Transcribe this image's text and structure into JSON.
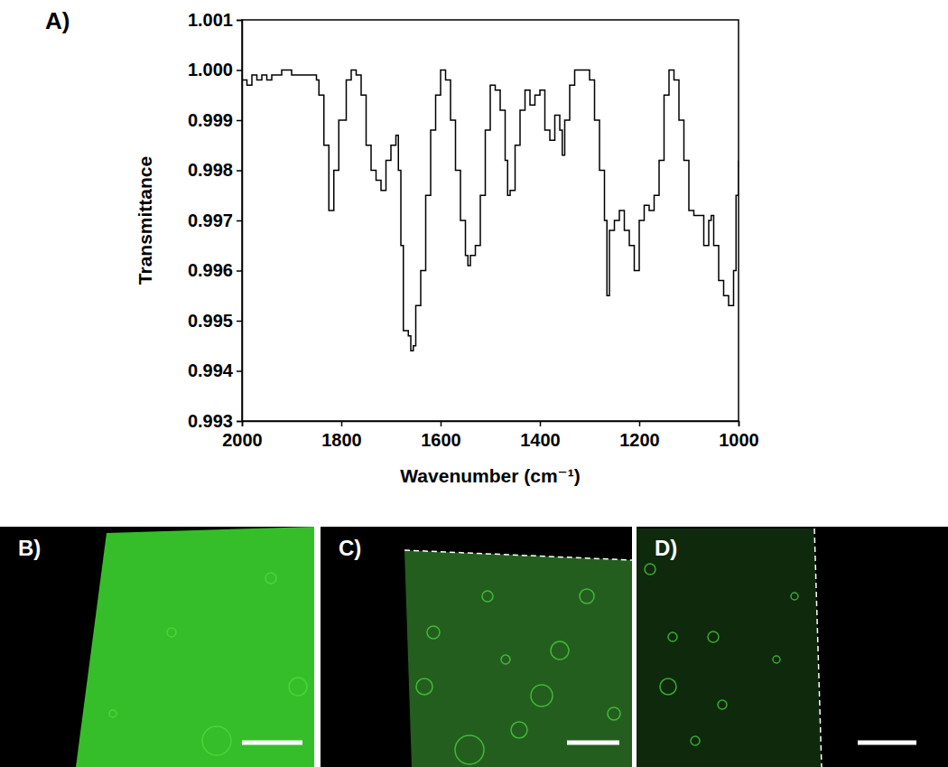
{
  "chart_data": {
    "type": "line",
    "annotations": [
      "A)"
    ],
    "x_label": "Wavenumber (cm⁻¹)",
    "y_label": "Transmittance",
    "x": [
      2000,
      1990,
      1980,
      1970,
      1960,
      1950,
      1940,
      1920,
      1900,
      1880,
      1860,
      1850,
      1845,
      1835,
      1825,
      1815,
      1805,
      1790,
      1780,
      1770,
      1760,
      1750,
      1740,
      1730,
      1720,
      1710,
      1700,
      1690,
      1685,
      1680,
      1675,
      1665,
      1660,
      1655,
      1650,
      1640,
      1630,
      1620,
      1610,
      1600,
      1590,
      1580,
      1570,
      1560,
      1550,
      1545,
      1540,
      1530,
      1520,
      1510,
      1500,
      1490,
      1480,
      1470,
      1465,
      1460,
      1450,
      1440,
      1430,
      1420,
      1410,
      1400,
      1390,
      1380,
      1370,
      1360,
      1355,
      1350,
      1340,
      1330,
      1310,
      1300,
      1290,
      1280,
      1270,
      1265,
      1260,
      1250,
      1240,
      1230,
      1220,
      1210,
      1200,
      1190,
      1180,
      1170,
      1160,
      1150,
      1140,
      1130,
      1120,
      1110,
      1100,
      1090,
      1080,
      1070,
      1060,
      1055,
      1050,
      1040,
      1030,
      1020,
      1010,
      1005,
      1000
    ],
    "values": [
      0.9998,
      0.9997,
      0.9999,
      0.9998,
      0.9999,
      0.9998,
      0.9999,
      1.0,
      0.9999,
      0.9999,
      0.9999,
      0.9998,
      0.9995,
      0.9985,
      0.9972,
      0.998,
      0.999,
      0.9998,
      1.0,
      0.9999,
      0.9995,
      0.9985,
      0.998,
      0.9978,
      0.9976,
      0.9982,
      0.9985,
      0.9987,
      0.998,
      0.9965,
      0.9948,
      0.9947,
      0.9944,
      0.9945,
      0.9953,
      0.996,
      0.9975,
      0.9988,
      0.9995,
      1.0,
      0.9998,
      0.999,
      0.998,
      0.997,
      0.9963,
      0.9961,
      0.9963,
      0.9965,
      0.9975,
      0.9988,
      0.9997,
      0.9996,
      0.9992,
      0.9982,
      0.9975,
      0.9976,
      0.9985,
      0.9992,
      0.9996,
      0.9993,
      0.9995,
      0.9996,
      0.9988,
      0.9986,
      0.9991,
      0.9988,
      0.9983,
      0.999,
      0.9997,
      1.0,
      1.0,
      0.9998,
      0.999,
      0.998,
      0.997,
      0.9955,
      0.9968,
      0.997,
      0.9972,
      0.9968,
      0.9965,
      0.996,
      0.997,
      0.9973,
      0.9972,
      0.9975,
      0.9982,
      0.9995,
      1.0,
      0.9998,
      0.999,
      0.9982,
      0.9972,
      0.9971,
      0.9971,
      0.9965,
      0.997,
      0.9971,
      0.9965,
      0.9958,
      0.9955,
      0.9953,
      0.996,
      0.9975,
      0.9982
    ],
    "color": "#000000",
    "xlim": [
      2000,
      1000
    ],
    "xticks": [
      2000,
      1800,
      1600,
      1400,
      1200,
      1000
    ],
    "ylim": [
      0.993,
      1.001
    ],
    "yticks": [
      0.993,
      0.994,
      0.995,
      0.996,
      0.997,
      0.998,
      0.999,
      {
        "value": 1,
        "label": "1.000"
      },
      1.001
    ]
  },
  "images": [
    {
      "label": "B)"
    },
    {
      "label": "C)"
    },
    {
      "label": "D)"
    }
  ]
}
